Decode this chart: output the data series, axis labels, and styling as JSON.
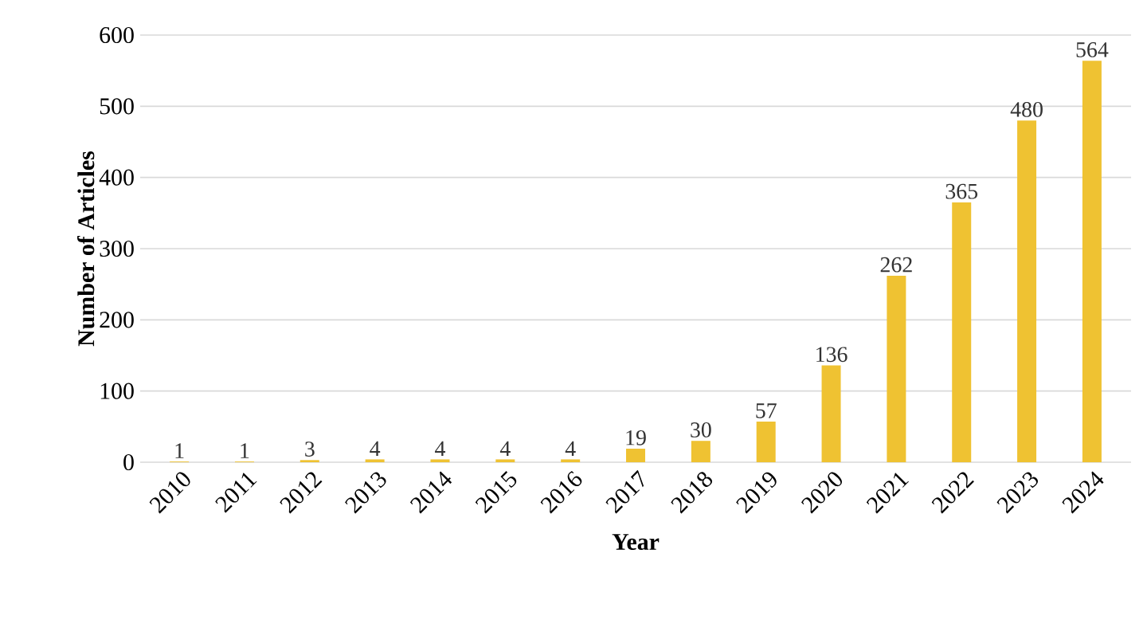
{
  "chart_data": {
    "type": "bar",
    "xlabel": "Year",
    "ylabel": "Number of Articles",
    "categories": [
      "2010",
      "2011",
      "2012",
      "2013",
      "2014",
      "2015",
      "2016",
      "2017",
      "2018",
      "2019",
      "2020",
      "2021",
      "2022",
      "2023",
      "2024"
    ],
    "values": [
      1,
      1,
      3,
      4,
      4,
      4,
      4,
      19,
      30,
      57,
      136,
      262,
      365,
      480,
      564
    ],
    "color": "#efc232",
    "ylim": [
      0,
      600
    ],
    "yticks": [
      0,
      100,
      200,
      300,
      400,
      500,
      600
    ],
    "grid": "y",
    "data_labels": true
  }
}
